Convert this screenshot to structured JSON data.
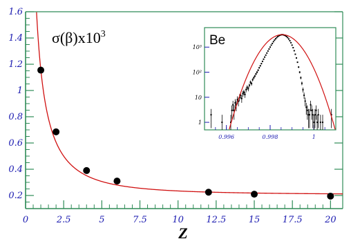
{
  "chart_data": [
    {
      "type": "scatter",
      "title": "σ(β)x10",
      "title_exponent": "3",
      "xlabel": "Z",
      "ylabel": "",
      "xlim": [
        0,
        20.8
      ],
      "ylim": [
        0.1,
        1.6
      ],
      "x_ticks": [
        0,
        2.5,
        5,
        7.5,
        10,
        12.5,
        15,
        17.5,
        20
      ],
      "x_tick_labels": [
        "0",
        "2.5",
        "5",
        "7.5",
        "10",
        "12.5",
        "15",
        "17.5",
        "20"
      ],
      "y_ticks": [
        0.2,
        0.4,
        0.6,
        0.8,
        1.0,
        1.2,
        1.4,
        1.6
      ],
      "y_tick_labels": [
        "0.2",
        "0.4",
        "0.6",
        "0.8",
        "1",
        "1.2",
        "1.4",
        "1.6"
      ],
      "grid": false,
      "colors": {
        "axes": "#2e8b57",
        "ticks": "#1a1ab0",
        "fit": "#d01010",
        "points": "#000000"
      },
      "series": [
        {
          "kind": "points",
          "x": [
            1,
            2,
            4,
            6,
            12,
            15,
            20
          ],
          "y": [
            1.155,
            0.685,
            0.39,
            0.31,
            0.225,
            0.21,
            0.195
          ]
        },
        {
          "kind": "fit_curve",
          "model": "sqrt(a^2/Z^2 + c^2)",
          "params": {
            "a": 1.14,
            "c": 0.205
          }
        }
      ]
    },
    {
      "type": "scatter",
      "title": "Be",
      "xlabel": "",
      "ylabel": "",
      "xlim": [
        0.995,
        1.001
      ],
      "y_scale": "log",
      "ylim": [
        0.5,
        6000
      ],
      "x_ticks": [
        0.996,
        0.998,
        1.0
      ],
      "x_tick_labels": [
        "0.996",
        "0.998",
        "1"
      ],
      "y_ticks": [
        1,
        10,
        100,
        1000
      ],
      "y_tick_labels": [
        "1",
        "10",
        "10²",
        "10³"
      ],
      "grid": false,
      "legend": "none",
      "colors": {
        "frame": "#2e8b57",
        "ticks": "#1a1ab0",
        "fit": "#d01010",
        "points": "#000000"
      },
      "series": [
        {
          "kind": "histogram_points",
          "x": [
            0.9953,
            0.9958,
            0.9962,
            0.99625,
            0.9963,
            0.99635,
            0.9964,
            0.99645,
            0.9965,
            0.99655,
            0.9966,
            0.99665,
            0.9967,
            0.99675,
            0.9968,
            0.99685,
            0.9969,
            0.99695,
            0.997,
            0.99705,
            0.9971,
            0.99715,
            0.9972,
            0.99725,
            0.9973,
            0.99735,
            0.9974,
            0.99745,
            0.9975,
            0.99755,
            0.9976,
            0.99765,
            0.9977,
            0.99775,
            0.9978,
            0.99785,
            0.9979,
            0.99795,
            0.998,
            0.99805,
            0.9981,
            0.99815,
            0.9982,
            0.99825,
            0.9983,
            0.99835,
            0.9984,
            0.99845,
            0.9985,
            0.99855,
            0.9986,
            0.99865,
            0.9987,
            0.99875,
            0.9988,
            0.99885,
            0.9989,
            0.99895,
            0.999,
            0.99905,
            0.9991,
            0.99915,
            0.9992,
            0.99925,
            0.9993,
            0.99935,
            0.9994,
            0.99945,
            0.9995,
            0.99955,
            0.9996,
            0.99965,
            0.9997,
            0.99975,
            0.9998,
            0.99985,
            0.9999,
            0.99995,
            1.0,
            1.00005,
            1.0001,
            1.00015,
            1.0002,
            1.0003,
            1.0004,
            1.0008
          ],
          "y": [
            2,
            1,
            1,
            3,
            5,
            3,
            6,
            5,
            8,
            7,
            10,
            12,
            9,
            14,
            16,
            13,
            20,
            25,
            22,
            30,
            40,
            35,
            50,
            60,
            70,
            85,
            100,
            120,
            150,
            180,
            220,
            270,
            330,
            400,
            480,
            580,
            700,
            840,
            1000,
            1200,
            1400,
            1650,
            1900,
            2150,
            2400,
            2650,
            2850,
            3000,
            3100,
            3150,
            3100,
            3000,
            2850,
            2650,
            2400,
            2100,
            1800,
            1500,
            1200,
            950,
            720,
            520,
            370,
            250,
            160,
            100,
            60,
            36,
            20,
            12,
            7,
            4,
            3,
            2,
            2,
            5,
            3,
            2,
            1,
            2,
            3,
            1,
            2,
            1,
            1,
            2
          ]
        },
        {
          "kind": "fit_curve",
          "model": "gaussian",
          "params": {
            "amplitude": 3150,
            "mean": 0.99855,
            "sigma": 0.00058
          }
        }
      ]
    }
  ]
}
